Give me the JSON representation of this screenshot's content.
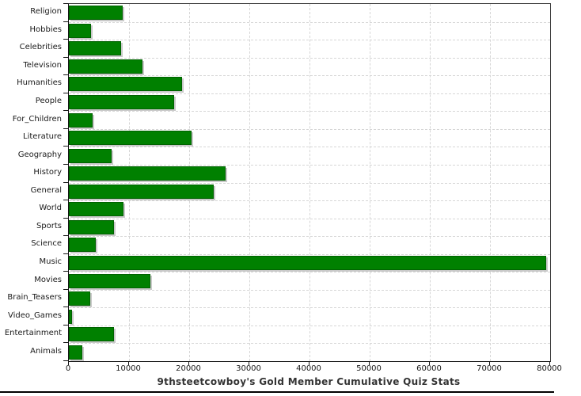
{
  "chart_data": {
    "type": "bar",
    "orientation": "horizontal",
    "title": "9thsteetcowboy's Gold Member Cumulative Quiz Stats",
    "xlabel": "",
    "ylabel": "",
    "categories": [
      "Religion",
      "Hobbies",
      "Celebrities",
      "Television",
      "Humanities",
      "People",
      "For_Children",
      "Literature",
      "Geography",
      "History",
      "General",
      "World",
      "Sports",
      "Science",
      "Music",
      "Movies",
      "Brain_Teasers",
      "Video_Games",
      "Entertainment",
      "Animals"
    ],
    "values": [
      8900,
      3700,
      8700,
      12200,
      18800,
      17500,
      3900,
      20400,
      7100,
      26100,
      24100,
      9100,
      7500,
      4500,
      79400,
      13600,
      3500,
      500,
      7500,
      2200
    ],
    "xlim": [
      0,
      80000
    ],
    "x_ticks": [
      0,
      10000,
      20000,
      30000,
      40000,
      50000,
      60000,
      70000,
      80000
    ],
    "x_tick_labels": [
      "0",
      "10000",
      "20000",
      "30000",
      "40000",
      "50000",
      "60000",
      "70000",
      "80000"
    ],
    "grid": true,
    "legend": "none",
    "colors": {
      "bar_fill": "#008000",
      "bar_border": "#006200",
      "bar_shadow": "#c9c9c9",
      "gridline": "#d6d6d6",
      "axis": "#161616",
      "text": "#1a1a1a",
      "title_text": "#333333"
    }
  }
}
